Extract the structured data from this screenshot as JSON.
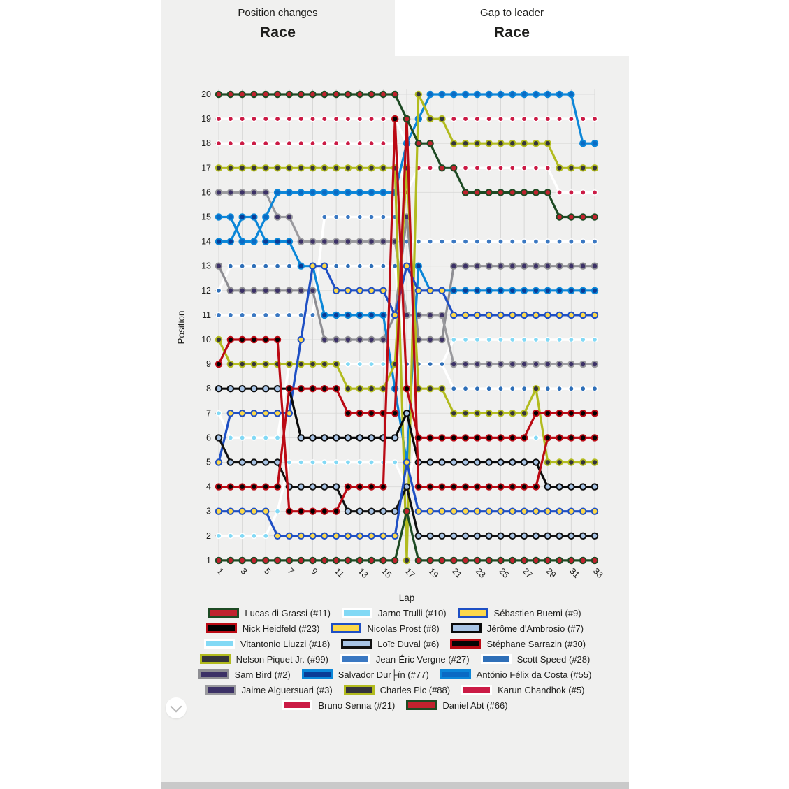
{
  "tabs": [
    {
      "subtitle": "Position changes",
      "title": "Race",
      "active": true
    },
    {
      "subtitle": "Gap to leader",
      "title": "Race",
      "active": false
    }
  ],
  "chart_data": {
    "type": "line",
    "xlabel": "Lap",
    "ylabel": "Position",
    "x_ticks": [
      1,
      3,
      5,
      7,
      9,
      11,
      13,
      15,
      17,
      19,
      21,
      23,
      25,
      27,
      29,
      31,
      33
    ],
    "laps": 33,
    "y_range": [
      1,
      20
    ],
    "grid": true,
    "note": "Race position by lap; position 1 at bottom, 20 at top. Dotted series = white line with colored markers (retired cars).",
    "series": [
      {
        "label": "Lucas di Grassi (#11)",
        "fill": "#c0222e",
        "line": "#1d4a23",
        "dotted": false,
        "positions": [
          1,
          1,
          1,
          1,
          1,
          1,
          1,
          1,
          1,
          1,
          1,
          1,
          1,
          1,
          1,
          1,
          3,
          1,
          1,
          1,
          1,
          1,
          1,
          1,
          1,
          1,
          1,
          1,
          1,
          1,
          1,
          1,
          1
        ]
      },
      {
        "label": "Jarno Trulli (#10)",
        "fill": "#82d9f5",
        "line": "#ffffff",
        "dotted": true,
        "positions": [
          2,
          2,
          2,
          2,
          2,
          3,
          5,
          5,
          5,
          5,
          5,
          5,
          5,
          5,
          5,
          5,
          4,
          6,
          6,
          6,
          6,
          6,
          6,
          6,
          6,
          6,
          6,
          6,
          6,
          6,
          6,
          6,
          6
        ]
      },
      {
        "label": "Sébastien Buemi (#9)",
        "fill": "#fcd84a",
        "line": "#1e4fc4",
        "dotted": false,
        "positions": [
          5,
          7,
          7,
          7,
          7,
          7,
          7,
          10,
          13,
          13,
          12,
          12,
          12,
          12,
          12,
          11,
          13,
          12,
          12,
          12,
          11,
          11,
          11,
          11,
          11,
          11,
          11,
          11,
          11,
          11,
          11,
          11,
          11
        ]
      },
      {
        "label": "Nick Heidfeld (#23)",
        "fill": "#000000",
        "line": "#bb0a14",
        "dotted": false,
        "positions": [
          9,
          10,
          10,
          10,
          10,
          10,
          3,
          3,
          3,
          3,
          3,
          4,
          4,
          4,
          4,
          19,
          8,
          6,
          6,
          6,
          6,
          6,
          6,
          6,
          6,
          6,
          6,
          7,
          7,
          7,
          7,
          7,
          7
        ]
      },
      {
        "label": "Nicolas Prost (#8)",
        "fill": "#fcd84a",
        "line": "#1e4fc4",
        "dotted": false,
        "positions": [
          3,
          3,
          3,
          3,
          3,
          2,
          2,
          2,
          2,
          2,
          2,
          2,
          2,
          2,
          2,
          2,
          5,
          3,
          3,
          3,
          3,
          3,
          3,
          3,
          3,
          3,
          3,
          3,
          3,
          3,
          3,
          3,
          3
        ]
      },
      {
        "label": "Jérôme d'Ambrosio (#7)",
        "fill": "#a8c4e5",
        "line": "#0a0a0a",
        "dotted": false,
        "positions": [
          8,
          8,
          8,
          8,
          8,
          8,
          8,
          6,
          6,
          6,
          6,
          6,
          6,
          6,
          6,
          6,
          7,
          5,
          5,
          5,
          5,
          5,
          5,
          5,
          5,
          5,
          5,
          5,
          4,
          4,
          4,
          4,
          4
        ]
      },
      {
        "label": "Vitantonio Liuzzi (#18)",
        "fill": "#82d9f5",
        "line": "#ffffff",
        "dotted": true,
        "positions": [
          7,
          6,
          6,
          6,
          6,
          6,
          9,
          9,
          9,
          9,
          9,
          9,
          9,
          9,
          9,
          9,
          9,
          9,
          9,
          9,
          10,
          10,
          10,
          10,
          10,
          10,
          10,
          10,
          10,
          10,
          10,
          10,
          10
        ]
      },
      {
        "label": "Loïc Duval (#6)",
        "fill": "#a8c4e5",
        "line": "#111111",
        "dotted": false,
        "positions": [
          6,
          5,
          5,
          5,
          5,
          5,
          4,
          4,
          4,
          4,
          4,
          3,
          3,
          3,
          3,
          3,
          4,
          2,
          2,
          2,
          2,
          2,
          2,
          2,
          2,
          2,
          2,
          2,
          2,
          2,
          2,
          2,
          2
        ]
      },
      {
        "label": "Stéphane Sarrazin (#30)",
        "fill": "#050505",
        "line": "#bb0a14",
        "dotted": false,
        "positions": [
          4,
          4,
          4,
          4,
          4,
          4,
          8,
          8,
          8,
          8,
          8,
          7,
          7,
          7,
          7,
          7,
          19,
          4,
          4,
          4,
          4,
          4,
          4,
          4,
          4,
          4,
          4,
          4,
          6,
          6,
          6,
          6,
          6
        ]
      },
      {
        "label": "Nelson Piquet Jr. (#99)",
        "fill": "#34343c",
        "line": "#b2bb1e",
        "dotted": false,
        "positions": [
          10,
          9,
          9,
          9,
          9,
          9,
          9,
          9,
          9,
          9,
          9,
          8,
          8,
          8,
          8,
          9,
          17,
          8,
          8,
          8,
          7,
          7,
          7,
          7,
          7,
          7,
          7,
          8,
          5,
          5,
          5,
          5,
          5
        ]
      },
      {
        "label": "Jean-Éric Vergne (#27)",
        "fill": "#3a78c2",
        "line": "#ffffff",
        "dotted": true,
        "positions": [
          11,
          11,
          11,
          11,
          11,
          11,
          11,
          11,
          11,
          15,
          15,
          15,
          15,
          15,
          15,
          15,
          14,
          14,
          14,
          14,
          14,
          14,
          14,
          14,
          14,
          14,
          14,
          14,
          14,
          14,
          14,
          14,
          14
        ]
      },
      {
        "label": "Scott Speed (#28)",
        "fill": "#2e6fb8",
        "line": "#ffffff",
        "dotted": true,
        "positions": [
          12,
          13,
          13,
          13,
          13,
          13,
          13,
          13,
          13,
          13,
          13,
          13,
          13,
          13,
          13,
          13,
          9,
          9,
          9,
          9,
          8,
          8,
          8,
          8,
          8,
          8,
          8,
          8,
          8,
          8,
          8,
          8,
          8
        ]
      },
      {
        "label": "Sam Bird (#2)",
        "fill": "#3c3166",
        "line": "#8e8e93",
        "dotted": false,
        "positions": [
          13,
          12,
          12,
          12,
          12,
          12,
          12,
          12,
          12,
          10,
          10,
          10,
          10,
          10,
          10,
          11,
          15,
          10,
          10,
          10,
          13,
          13,
          13,
          13,
          13,
          13,
          13,
          13,
          13,
          13,
          13,
          13,
          13
        ]
      },
      {
        "label": "Salvador Dur├ín (#77)",
        "fill": "#0a3c96",
        "line": "#0b87d8",
        "dotted": false,
        "positions": [
          14,
          14,
          15,
          15,
          14,
          14,
          14,
          13,
          13,
          11,
          11,
          11,
          11,
          11,
          11,
          8,
          5,
          13,
          12,
          12,
          12,
          12,
          12,
          12,
          12,
          12,
          12,
          12,
          12,
          12,
          12,
          12,
          12
        ]
      },
      {
        "label": "António Félix da Costa (#55)",
        "fill": "#0a6ac4",
        "line": "#0c86d8",
        "dotted": false,
        "positions": [
          15,
          15,
          14,
          14,
          15,
          16,
          16,
          16,
          16,
          16,
          16,
          16,
          16,
          16,
          16,
          16,
          18,
          19,
          20,
          20,
          20,
          20,
          20,
          20,
          20,
          20,
          20,
          20,
          20,
          20,
          20,
          18,
          18
        ]
      },
      {
        "label": "Jaime Alguersuari (#3)",
        "fill": "#3c3166",
        "line": "#9a9a9e",
        "dotted": false,
        "positions": [
          16,
          16,
          16,
          16,
          16,
          15,
          15,
          14,
          14,
          14,
          14,
          14,
          14,
          14,
          14,
          14,
          11,
          11,
          11,
          11,
          9,
          9,
          9,
          9,
          9,
          9,
          9,
          9,
          9,
          9,
          9,
          9,
          9
        ]
      },
      {
        "label": "Charles Pic (#88)",
        "fill": "#34343c",
        "line": "#b2bb1e",
        "dotted": false,
        "positions": [
          17,
          17,
          17,
          17,
          17,
          17,
          17,
          17,
          17,
          17,
          17,
          17,
          17,
          17,
          17,
          17,
          1,
          20,
          19,
          19,
          18,
          18,
          18,
          18,
          18,
          18,
          18,
          18,
          18,
          17,
          17,
          17,
          17
        ]
      },
      {
        "label": "Karun Chandhok (#5)",
        "fill": "#cb1b45",
        "line": "#ffffff",
        "dotted": true,
        "positions": [
          18,
          18,
          18,
          18,
          18,
          18,
          18,
          18,
          18,
          18,
          18,
          18,
          18,
          18,
          18,
          18,
          16,
          17,
          17,
          17,
          17,
          17,
          17,
          17,
          17,
          17,
          17,
          17,
          17,
          16,
          16,
          16,
          16
        ]
      },
      {
        "label": "Bruno Senna (#21)",
        "fill": "#cb1b45",
        "line": "#ffffff",
        "dotted": true,
        "positions": [
          19,
          19,
          19,
          19,
          19,
          19,
          19,
          19,
          19,
          19,
          19,
          19,
          19,
          19,
          19,
          19,
          18,
          19,
          19,
          19,
          19,
          19,
          19,
          19,
          19,
          19,
          19,
          19,
          19,
          19,
          19,
          19,
          19
        ]
      },
      {
        "label": "Daniel Abt (#66)",
        "fill": "#c0222e",
        "line": "#1d4a23",
        "dotted": false,
        "positions": [
          20,
          20,
          20,
          20,
          20,
          20,
          20,
          20,
          20,
          20,
          20,
          20,
          20,
          20,
          20,
          20,
          19,
          18,
          18,
          17,
          17,
          16,
          16,
          16,
          16,
          16,
          16,
          16,
          16,
          15,
          15,
          15,
          15
        ]
      }
    ],
    "legend_rows": [
      [
        0,
        1,
        2
      ],
      [
        3,
        4,
        5
      ],
      [
        6,
        7,
        8
      ],
      [
        9,
        10,
        11
      ],
      [
        12,
        13,
        14
      ],
      [
        15,
        16,
        17
      ],
      [
        18,
        19
      ]
    ],
    "draw_order": [
      18,
      17,
      1,
      6,
      10,
      11,
      12,
      15,
      13,
      14,
      9,
      16,
      2,
      5,
      7,
      8,
      3,
      4,
      19,
      0
    ],
    "legend_position": "bottom"
  }
}
